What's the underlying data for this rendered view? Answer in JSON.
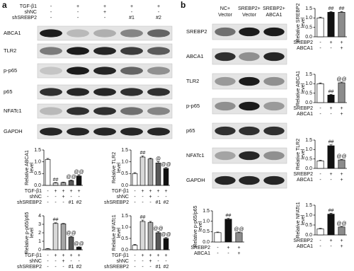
{
  "panel_a": {
    "label": "a",
    "conditions": [
      {
        "name": "TGF-β1",
        "values": [
          "-",
          "+",
          "+",
          "+",
          "+"
        ]
      },
      {
        "name": "shNC",
        "values": [
          "-",
          "-",
          "+",
          "-",
          "-"
        ]
      },
      {
        "name": "shSREBP2",
        "values": [
          "-",
          "-",
          "-",
          "#1",
          "#2"
        ]
      }
    ],
    "blot_labels": [
      "ABCA1",
      "TLR2",
      "p-p65",
      "p65",
      "NFATc1",
      "GAPDH"
    ]
  },
  "panel_b": {
    "label": "b",
    "lanes": [
      [
        "NC+",
        "Vector"
      ],
      [
        "SREBP2+",
        "Vector"
      ],
      [
        "SREBP2+",
        "ABCA1"
      ]
    ],
    "blot_labels": [
      "SREBP2",
      "ABCA1",
      "TLR2",
      "p-p65",
      "p65",
      "NFATc1",
      "GAPDH"
    ]
  },
  "chart_data": [
    {
      "type": "bar",
      "ylabel": [
        "Relative ABCA1",
        "level"
      ],
      "values": [
        1.1,
        0.1,
        0.12,
        0.2,
        0.4
      ],
      "errors": [
        0.04,
        0.02,
        0.02,
        0.03,
        0.05
      ],
      "annotations": [
        null,
        "##",
        null,
        "@@",
        "@@"
      ],
      "colors": [
        "#ffffff",
        "#d9d9d9",
        "#a6a6a6",
        "#595959",
        "#111111"
      ],
      "ylim": [
        0,
        1.5
      ],
      "yticks": [
        {
          "value": 0,
          "label": "0.0"
        },
        {
          "value": 0.5,
          "label": "0.5"
        },
        {
          "value": 1,
          "label": "1.0"
        },
        {
          "value": 1.5,
          "label": "1.5"
        }
      ],
      "conditions": [
        {
          "name": "TGF-β1",
          "values": [
            "-",
            "+",
            "+",
            "+",
            "+"
          ]
        },
        {
          "name": "shNC",
          "values": [
            "-",
            "-",
            "+",
            "-",
            "-"
          ]
        },
        {
          "name": "shSREBP2",
          "values": [
            "-",
            "-",
            "-",
            "#1",
            "#2"
          ]
        }
      ]
    },
    {
      "type": "bar",
      "ylabel": [
        "Relative TLR2",
        "level"
      ],
      "values": [
        0.5,
        1.2,
        1.12,
        0.95,
        0.72
      ],
      "errors": [
        0.04,
        0.05,
        0.04,
        0.05,
        0.04
      ],
      "annotations": [
        null,
        "##",
        null,
        "@",
        "@@"
      ],
      "colors": [
        "#ffffff",
        "#d9d9d9",
        "#a6a6a6",
        "#595959",
        "#111111"
      ],
      "ylim": [
        0,
        1.5
      ],
      "yticks": [
        {
          "value": 0,
          "label": "0.0"
        },
        {
          "value": 0.5,
          "label": "0.5"
        },
        {
          "value": 1,
          "label": "1.0"
        },
        {
          "value": 1.5,
          "label": "1.5"
        }
      ],
      "conditions": [
        {
          "name": "TGF-β1",
          "values": [
            "-",
            "+",
            "+",
            "+",
            "+"
          ]
        },
        {
          "name": "shNC",
          "values": [
            "-",
            "-",
            "+",
            "-",
            "-"
          ]
        },
        {
          "name": "shSREBP2",
          "values": [
            "-",
            "-",
            "-",
            "#1",
            "#2"
          ]
        }
      ]
    },
    {
      "type": "bar",
      "ylabel": [
        "Relative p-p65/p65",
        "level"
      ],
      "values": [
        0.1,
        3.1,
        3.05,
        1.5,
        0.3
      ],
      "errors": [
        0.05,
        0.08,
        0.06,
        0.1,
        0.05
      ],
      "annotations": [
        null,
        "##",
        null,
        "@@",
        "@@"
      ],
      "colors": [
        "#ffffff",
        "#d9d9d9",
        "#a6a6a6",
        "#595959",
        "#111111"
      ],
      "ylim": [
        0,
        4
      ],
      "yticks": [
        0,
        1,
        2,
        3,
        4
      ],
      "conditions": [
        {
          "name": "TGF-β1",
          "values": [
            "-",
            "+",
            "+",
            "+",
            "+"
          ]
        },
        {
          "name": "shNC",
          "values": [
            "-",
            "-",
            "+",
            "-",
            "-"
          ]
        },
        {
          "name": "shSREBP2",
          "values": [
            "-",
            "-",
            "-",
            "#1",
            "#2"
          ]
        }
      ]
    },
    {
      "type": "bar",
      "ylabel": [
        "Relative NFATc1",
        "level"
      ],
      "values": [
        0.2,
        1.25,
        1.2,
        0.75,
        0.5
      ],
      "errors": [
        0.03,
        0.06,
        0.05,
        0.05,
        0.04
      ],
      "annotations": [
        null,
        "##",
        null,
        "@@",
        "@@"
      ],
      "colors": [
        "#ffffff",
        "#d9d9d9",
        "#a6a6a6",
        "#595959",
        "#111111"
      ],
      "ylim": [
        0,
        1.5
      ],
      "yticks": [
        {
          "value": 0,
          "label": "0.0"
        },
        {
          "value": 0.5,
          "label": "0.5"
        },
        {
          "value": 1,
          "label": "1.0"
        },
        {
          "value": 1.5,
          "label": "1.5"
        }
      ],
      "conditions": [
        {
          "name": "TGF-β1",
          "values": [
            "-",
            "+",
            "+",
            "+",
            "+"
          ]
        },
        {
          "name": "shNC",
          "values": [
            "-",
            "-",
            "+",
            "-",
            "-"
          ]
        },
        {
          "name": "shSREBP2",
          "values": [
            "-",
            "-",
            "-",
            "#1",
            "#2"
          ]
        }
      ]
    },
    {
      "type": "bar",
      "ylabel": [
        "Relative SREBP2",
        "level"
      ],
      "values": [
        1.0,
        1.3,
        1.3
      ],
      "errors": [
        0.04,
        0.04,
        0.04
      ],
      "annotations": [
        null,
        "##",
        "##"
      ],
      "colors": [
        "#ffffff",
        "#111111",
        "#8c8c8c"
      ],
      "ylim": [
        0,
        1.5
      ],
      "yticks": [
        {
          "value": 0,
          "label": "0.0"
        },
        {
          "value": 0.5,
          "label": "0.5"
        },
        {
          "value": 1,
          "label": "1.0"
        },
        {
          "value": 1.5,
          "label": "1.5"
        }
      ],
      "conditions": [
        {
          "name": "SREBP2",
          "values": [
            "-",
            "+",
            "+"
          ]
        },
        {
          "name": "ABCA1",
          "values": [
            "-",
            "-",
            "+"
          ]
        }
      ]
    },
    {
      "type": "bar",
      "ylabel": [
        "Relative ABCA1",
        "level"
      ],
      "values": [
        1.0,
        0.4,
        1.05
      ],
      "errors": [
        0.04,
        0.03,
        0.04
      ],
      "annotations": [
        null,
        "##",
        "@@"
      ],
      "colors": [
        "#ffffff",
        "#111111",
        "#8c8c8c"
      ],
      "ylim": [
        0,
        1.5
      ],
      "yticks": [
        {
          "value": 0,
          "label": "0.0"
        },
        {
          "value": 0.5,
          "label": "0.5"
        },
        {
          "value": 1,
          "label": "1.0"
        },
        {
          "value": 1.5,
          "label": "1.5"
        }
      ],
      "conditions": [
        {
          "name": "SREBP2",
          "values": [
            "-",
            "+",
            "+"
          ]
        },
        {
          "name": "ABCA1",
          "values": [
            "-",
            "-",
            "+"
          ]
        }
      ]
    },
    {
      "type": "bar",
      "ylabel": [
        "Relative TLR2",
        "level"
      ],
      "values": [
        0.4,
        1.2,
        0.45
      ],
      "errors": [
        0.03,
        0.05,
        0.03
      ],
      "annotations": [
        null,
        "##",
        "@@"
      ],
      "colors": [
        "#ffffff",
        "#111111",
        "#8c8c8c"
      ],
      "ylim": [
        0,
        1.5
      ],
      "yticks": [
        {
          "value": 0,
          "label": "0.0"
        },
        {
          "value": 0.5,
          "label": "0.5"
        },
        {
          "value": 1,
          "label": "1.0"
        },
        {
          "value": 1.5,
          "label": "1.5"
        }
      ],
      "conditions": [
        {
          "name": "SREBP2",
          "values": [
            "-",
            "+",
            "+"
          ]
        },
        {
          "name": "ABCA1",
          "values": [
            "-",
            "-",
            "+"
          ]
        }
      ]
    },
    {
      "type": "bar",
      "ylabel": [
        "Relative p-p65/p65",
        "level"
      ],
      "values": [
        0.45,
        1.1,
        0.45
      ],
      "errors": [
        0.03,
        0.04,
        0.03
      ],
      "annotations": [
        null,
        "##",
        "@@"
      ],
      "colors": [
        "#ffffff",
        "#111111",
        "#8c8c8c"
      ],
      "ylim": [
        0,
        1.5
      ],
      "yticks": [
        {
          "value": 0,
          "label": "0.0"
        },
        {
          "value": 0.5,
          "label": "0.5"
        },
        {
          "value": 1,
          "label": "1.0"
        },
        {
          "value": 1.5,
          "label": "1.5"
        }
      ],
      "conditions": [
        {
          "name": "SREBP2",
          "values": [
            "-",
            "+",
            "+"
          ]
        },
        {
          "name": "ABCA1",
          "values": [
            "-",
            "-",
            "+"
          ]
        }
      ]
    },
    {
      "type": "bar",
      "ylabel": [
        "Relative NFATc1",
        "level"
      ],
      "values": [
        0.3,
        1.05,
        0.4
      ],
      "errors": [
        0.03,
        0.04,
        0.03
      ],
      "annotations": [
        null,
        "##",
        "@@"
      ],
      "colors": [
        "#ffffff",
        "#111111",
        "#8c8c8c"
      ],
      "ylim": [
        0,
        1.5
      ],
      "yticks": [
        {
          "value": 0,
          "label": "0.0"
        },
        {
          "value": 0.5,
          "label": "0.5"
        },
        {
          "value": 1,
          "label": "1.0"
        },
        {
          "value": 1.5,
          "label": "1.5"
        }
      ],
      "conditions": [
        {
          "name": "SREBP2",
          "values": [
            "-",
            "+",
            "+"
          ]
        },
        {
          "name": "ABCA1",
          "values": [
            "-",
            "-",
            "+"
          ]
        }
      ]
    }
  ]
}
